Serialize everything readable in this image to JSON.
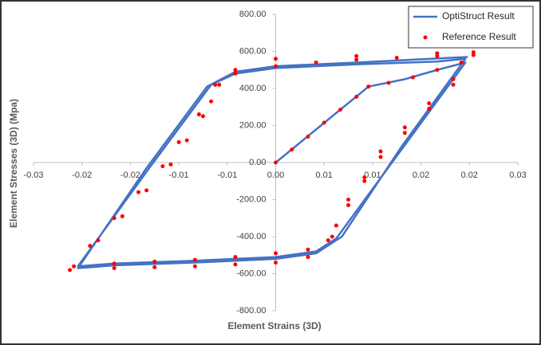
{
  "chart_data": {
    "type": "scatter",
    "x_label": "Element Strains (3D)",
    "y_label": "Element Stresses (3D) (Mpa)",
    "xlim": [
      -0.03,
      0.03
    ],
    "ylim": [
      -800,
      800
    ],
    "xticks": [
      {
        "value": -0.03,
        "label": "-0.03"
      },
      {
        "value": -0.024,
        "label": "-0.02"
      },
      {
        "value": -0.018,
        "label": "-0.02"
      },
      {
        "value": -0.012,
        "label": "-0.01"
      },
      {
        "value": -0.006,
        "label": "-0.01"
      },
      {
        "value": 0,
        "label": "0.00"
      },
      {
        "value": 0.006,
        "label": "0.01"
      },
      {
        "value": 0.012,
        "label": "0.01"
      },
      {
        "value": 0.018,
        "label": "0.02"
      },
      {
        "value": 0.024,
        "label": "0.02"
      },
      {
        "value": 0.03,
        "label": "0.03"
      }
    ],
    "yticks": [
      {
        "value": -800,
        "label": "-800.00"
      },
      {
        "value": -600,
        "label": "-600.00"
      },
      {
        "value": -400,
        "label": "-400.00"
      },
      {
        "value": -200,
        "label": "-200.00"
      },
      {
        "value": 0,
        "label": "0.00"
      },
      {
        "value": 200,
        "label": "200.00"
      },
      {
        "value": 400,
        "label": "400.00"
      },
      {
        "value": 600,
        "label": "600.00"
      },
      {
        "value": 800,
        "label": "800.00"
      }
    ],
    "grid": false,
    "legend": "upper right",
    "series": [
      {
        "name": "OptiStruct Result",
        "color": "#4472c4",
        "style": "line",
        "x": [
          0,
          0.0115,
          0.016,
          0.02,
          0.0235,
          0.0155,
          0.0075,
          0.005,
          0,
          -0.01,
          -0.02,
          -0.0245,
          -0.0155,
          -0.008,
          -0.005,
          0,
          0.01,
          0.02,
          0.0235,
          0.0155,
          0.0082,
          0.005,
          0,
          -0.01,
          -0.02,
          -0.0245,
          -0.016,
          -0.0085,
          -0.005,
          0,
          0.01,
          0.0238
        ],
        "values": [
          0,
          410,
          450,
          500,
          540,
          65,
          -410,
          -480,
          -510,
          -530,
          -545,
          -560,
          -20,
          420,
          480,
          510,
          530,
          545,
          560,
          80,
          -400,
          -490,
          -520,
          -540,
          -555,
          -570,
          -30,
          410,
          490,
          520,
          540,
          570
        ]
      },
      {
        "name": "Reference Result",
        "color": "#ff0000",
        "style": "scatter",
        "x": [
          0,
          0.002,
          0.004,
          0.006,
          0.008,
          0.01,
          0.0115,
          0.014,
          0.017,
          0.02,
          0.023,
          0.0245,
          0.022,
          0.019,
          0.016,
          0.013,
          0.011,
          0.009,
          0.0075,
          0.0065,
          0.004,
          0,
          -0.005,
          -0.01,
          -0.015,
          -0.02,
          -0.025,
          -0.022,
          -0.019,
          -0.016,
          -0.013,
          -0.011,
          -0.009,
          -0.008,
          -0.007,
          -0.005,
          0,
          0.005,
          0.01,
          0.015,
          0.02,
          0.0245,
          0.022,
          0.019,
          0.016,
          0.013,
          0.011,
          0.009,
          0.007,
          0.004,
          0,
          -0.005,
          -0.01,
          -0.015,
          -0.02,
          -0.0255,
          -0.023,
          -0.02,
          -0.017,
          -0.014,
          -0.012,
          -0.0095,
          -0.0075,
          -0.005,
          0,
          0.01,
          0.02
        ],
        "values": [
          0,
          70,
          140,
          215,
          285,
          355,
          410,
          430,
          460,
          500,
          540,
          580,
          420,
          290,
          160,
          30,
          -100,
          -230,
          -340,
          -420,
          -470,
          -490,
          -510,
          -525,
          -535,
          -545,
          -560,
          -420,
          -290,
          -150,
          -10,
          120,
          250,
          330,
          420,
          480,
          520,
          540,
          555,
          565,
          575,
          595,
          450,
          320,
          190,
          60,
          -80,
          -200,
          -400,
          -510,
          -540,
          -550,
          -560,
          -565,
          -570,
          -580,
          -450,
          -300,
          -160,
          -20,
          110,
          260,
          420,
          500,
          560,
          575,
          590
        ]
      }
    ]
  }
}
